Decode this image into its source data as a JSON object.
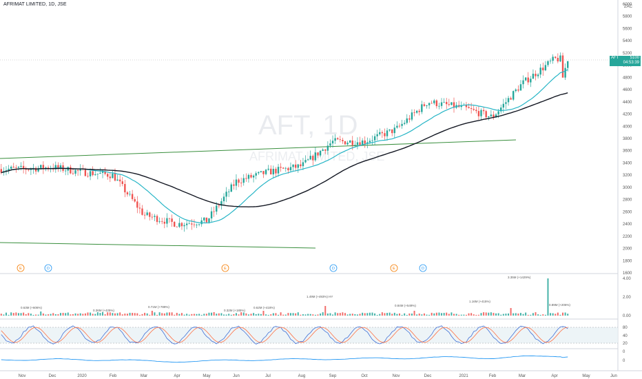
{
  "header": {
    "title": "AFRIMAT LIMITED, 1D, JSE"
  },
  "currency": "ZAC",
  "price_axis": {
    "labels": [
      "6000",
      "5800",
      "5600",
      "5400",
      "5200",
      "5000",
      "4800",
      "4600",
      "4400",
      "4200",
      "4000",
      "3800",
      "3600",
      "3400",
      "3200",
      "3000",
      "2800",
      "2600",
      "2400",
      "2200",
      "2000",
      "1800",
      "1600"
    ],
    "min": 1600,
    "max": 6000
  },
  "price_label": {
    "symbol": "AFT",
    "price": "5100",
    "countdown": "04:53:39",
    "color": "#26a69a"
  },
  "watermark": {
    "symbol": "AFT, 1D",
    "name": "AFRIMAT LIMITED, JSE"
  },
  "event_markers": [
    {
      "label": "E",
      "type": "earnings"
    },
    {
      "label": "D",
      "type": "dividend"
    },
    {
      "label": "E",
      "type": "earnings"
    },
    {
      "label": "D",
      "type": "dividend"
    },
    {
      "label": "E",
      "type": "earnings"
    },
    {
      "label": "D",
      "type": "dividend"
    }
  ],
  "volume_axis": {
    "labels": [
      "4.00",
      "2.00",
      "0.00"
    ]
  },
  "volume_annotations": [
    "0.63M (+606%)",
    "0.36M (+425%)",
    "0.71M (+789%)",
    "0.32M (+185%)",
    "0.62M (+418%)",
    "1.49M (+493%) HY",
    "0.84M (+549%)",
    "1.16M (+415%)",
    "3.35M (+1429%)",
    "0.89M (+206%)"
  ],
  "stoch_axis": {
    "labels": [
      "80",
      "40",
      "20"
    ]
  },
  "osc_axis": {
    "labels": [
      "0",
      "0"
    ]
  },
  "time_axis": {
    "labels": [
      "Nov",
      "Dec",
      "2020",
      "Feb",
      "Mar",
      "Apr",
      "May",
      "Jun",
      "Jul",
      "Aug",
      "Sep",
      "Oct",
      "Nov",
      "Dec",
      "2021",
      "Feb",
      "Mar",
      "Apr",
      "May",
      "Jun"
    ]
  },
  "colors": {
    "up": "#26a69a",
    "down": "#ef5350",
    "ema_fast": "#26b5c6",
    "sma_slow": "#131722",
    "trendline": "#388e3c",
    "stoch_k": "#3f6fd6",
    "stoch_d": "#ff7043",
    "osc": "#2196f3"
  },
  "chart_data": {
    "type": "candlestick",
    "title": "AFRIMAT LIMITED, 1D, JSE",
    "ylim": [
      1600,
      6000
    ],
    "price_path": [
      {
        "month": "Nov 2019",
        "close": 3300
      },
      {
        "month": "Dec 2019",
        "close": 3330
      },
      {
        "month": "Jan 2020",
        "close": 3250
      },
      {
        "month": "Feb 2020",
        "close": 3200
      },
      {
        "month": "Mar 2020",
        "close": 2550
      },
      {
        "month": "Apr 2020",
        "close": 2400
      },
      {
        "month": "May 2020",
        "close": 2450
      },
      {
        "month": "Jun 2020",
        "close": 3100
      },
      {
        "month": "Jul 2020",
        "close": 3250
      },
      {
        "month": "Aug 2020",
        "close": 3350
      },
      {
        "month": "Sep 2020",
        "close": 3750
      },
      {
        "month": "Oct 2020",
        "close": 3750
      },
      {
        "month": "Nov 2020",
        "close": 3950
      },
      {
        "month": "Dec 2020",
        "close": 4400
      },
      {
        "month": "Jan 2021",
        "close": 4300
      },
      {
        "month": "Feb 2021",
        "close": 4150
      },
      {
        "month": "Mar 2021",
        "close": 4700
      },
      {
        "month": "Apr 2021",
        "close": 5100
      }
    ],
    "last_price": 5100
  }
}
